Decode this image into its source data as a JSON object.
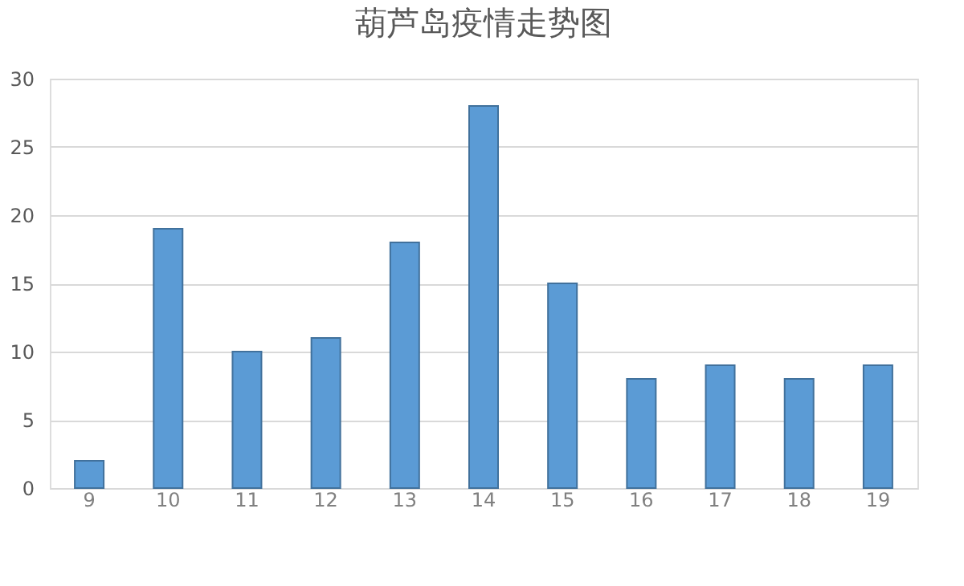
{
  "chart_data": {
    "type": "bar",
    "title": "葫芦岛疫情走势图",
    "categories": [
      "9",
      "10",
      "11",
      "12",
      "13",
      "14",
      "15",
      "16",
      "17",
      "18",
      "19"
    ],
    "values": [
      2,
      19,
      10,
      11,
      18,
      28,
      15,
      8,
      9,
      8,
      9
    ],
    "color": "#5b9bd5",
    "ylim": [
      0,
      30
    ],
    "yticks": [
      0,
      5,
      10,
      15,
      20,
      25,
      30
    ],
    "grid": "y"
  }
}
